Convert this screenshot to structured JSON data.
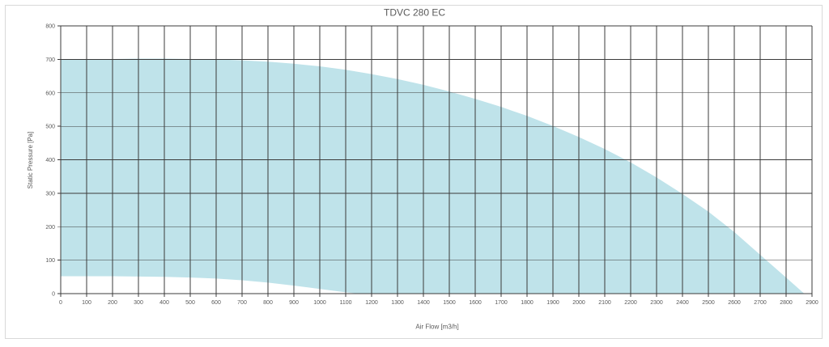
{
  "chart_data": {
    "type": "area",
    "title": "TDVC 280 EC",
    "xlabel": "Air Flow [m3/h]",
    "ylabel": "Static Pressure [Pa]",
    "xlim": [
      0,
      2900
    ],
    "ylim": [
      0,
      800
    ],
    "x_ticks": [
      0,
      100,
      200,
      300,
      400,
      500,
      600,
      700,
      800,
      900,
      1000,
      1100,
      1200,
      1300,
      1400,
      1500,
      1600,
      1700,
      1800,
      1900,
      2000,
      2100,
      2200,
      2300,
      2400,
      2500,
      2600,
      2700,
      2800,
      2900
    ],
    "y_ticks": [
      0,
      100,
      200,
      300,
      400,
      500,
      600,
      700,
      800
    ],
    "grid": true,
    "legend": "none",
    "fill_color": "#bfe3ea",
    "series": [
      {
        "role": "max",
        "x": [
          0,
          100,
          200,
          300,
          400,
          500,
          600,
          700,
          800,
          900,
          1000,
          1100,
          1200,
          1300,
          1400,
          1500,
          1600,
          1700,
          1800,
          1900,
          2000,
          2100,
          2200,
          2300,
          2400,
          2500,
          2600,
          2700,
          2800,
          2870
        ],
        "y": [
          700,
          700,
          701,
          702,
          702,
          701,
          700,
          697,
          693,
          687,
          679,
          669,
          656,
          641,
          624,
          604,
          582,
          558,
          531,
          501,
          468,
          432,
          392,
          347,
          298,
          245,
          184,
          116,
          48,
          0
        ]
      },
      {
        "role": "min",
        "x": [
          0,
          100,
          200,
          300,
          400,
          500,
          600,
          700,
          800,
          900,
          1000,
          1100,
          1150
        ],
        "y": [
          52,
          52,
          52,
          51,
          50,
          48,
          45,
          40,
          33,
          24,
          14,
          4,
          0
        ]
      }
    ]
  }
}
